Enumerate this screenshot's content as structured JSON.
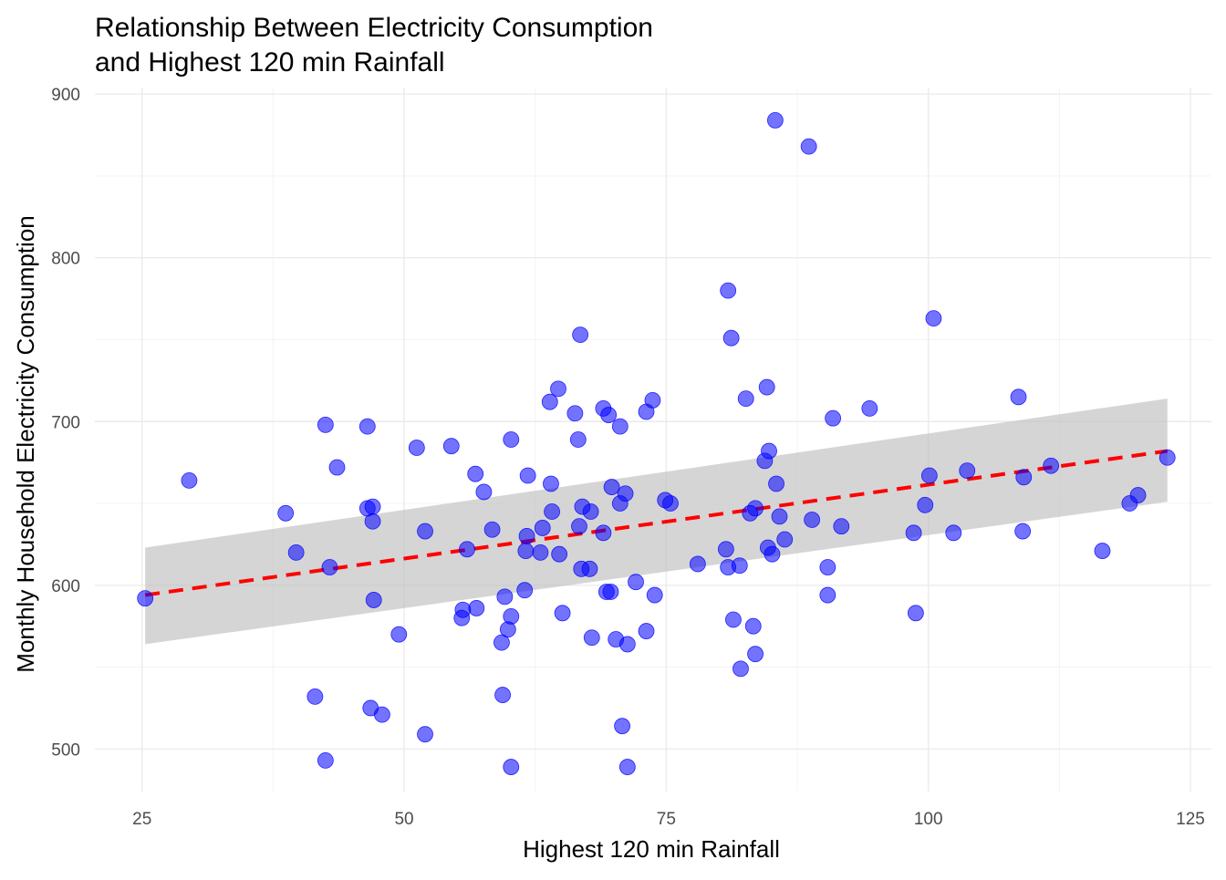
{
  "chart_data": {
    "type": "scatter",
    "title": "Relationship Between Electricity Consumption\nand Highest 120 min Rainfall",
    "title_lines": [
      "Relationship Between Electricity Consumption",
      "and Highest 120 min Rainfall"
    ],
    "xlabel": "Highest 120 min Rainfall",
    "ylabel": "Monthly Household Electricity Consumption",
    "xlim": [
      20.5,
      127
    ],
    "ylim": [
      474,
      904
    ],
    "x_ticks": [
      25,
      50,
      75,
      100,
      125
    ],
    "y_ticks": [
      500,
      600,
      700,
      800,
      900
    ],
    "grid": true,
    "colors": {
      "points": "#0000ff",
      "trend_line": "#ff0000",
      "confidence_band": "#bfbfbf"
    },
    "trend": {
      "method": "linear regression",
      "x": [
        25.3,
        122.8
      ],
      "y": [
        594,
        682
      ],
      "ci_lower": [
        564,
        651
      ],
      "ci_upper": [
        623,
        714
      ]
    },
    "points": [
      [
        25.3,
        592
      ],
      [
        29.5,
        664
      ],
      [
        38.7,
        644
      ],
      [
        39.7,
        620
      ],
      [
        41.5,
        532
      ],
      [
        42.5,
        698
      ],
      [
        42.5,
        493
      ],
      [
        42.9,
        611
      ],
      [
        43.6,
        672
      ],
      [
        46.5,
        697
      ],
      [
        46.5,
        647
      ],
      [
        46.8,
        525
      ],
      [
        47.0,
        648
      ],
      [
        47.0,
        639
      ],
      [
        47.1,
        591
      ],
      [
        47.9,
        521
      ],
      [
        49.5,
        570
      ],
      [
        51.2,
        684
      ],
      [
        52.0,
        633
      ],
      [
        52.0,
        509
      ],
      [
        54.5,
        685
      ],
      [
        55.5,
        580
      ],
      [
        55.6,
        585
      ],
      [
        56.0,
        622
      ],
      [
        56.8,
        668
      ],
      [
        56.9,
        586
      ],
      [
        57.6,
        657
      ],
      [
        58.4,
        634
      ],
      [
        59.3,
        565
      ],
      [
        59.4,
        533
      ],
      [
        59.6,
        593
      ],
      [
        59.9,
        573
      ],
      [
        60.2,
        689
      ],
      [
        60.2,
        581
      ],
      [
        60.2,
        489
      ],
      [
        61.5,
        597
      ],
      [
        61.6,
        621
      ],
      [
        61.7,
        630
      ],
      [
        61.8,
        667
      ],
      [
        63.0,
        620
      ],
      [
        63.2,
        635
      ],
      [
        63.9,
        712
      ],
      [
        64.0,
        662
      ],
      [
        64.1,
        645
      ],
      [
        64.7,
        720
      ],
      [
        64.8,
        619
      ],
      [
        65.1,
        583
      ],
      [
        66.3,
        705
      ],
      [
        66.6,
        689
      ],
      [
        66.7,
        636
      ],
      [
        66.8,
        753
      ],
      [
        66.9,
        610
      ],
      [
        67.0,
        648
      ],
      [
        67.7,
        610
      ],
      [
        67.9,
        568
      ],
      [
        67.8,
        645
      ],
      [
        69.0,
        708
      ],
      [
        69.0,
        632
      ],
      [
        69.3,
        596
      ],
      [
        69.5,
        704
      ],
      [
        69.7,
        596
      ],
      [
        69.8,
        660
      ],
      [
        70.2,
        567
      ],
      [
        70.6,
        697
      ],
      [
        70.6,
        650
      ],
      [
        70.8,
        514
      ],
      [
        71.1,
        656
      ],
      [
        71.3,
        564
      ],
      [
        71.3,
        489
      ],
      [
        72.1,
        602
      ],
      [
        73.1,
        572
      ],
      [
        73.1,
        706
      ],
      [
        73.7,
        713
      ],
      [
        73.9,
        594
      ],
      [
        74.9,
        652
      ],
      [
        75.4,
        650
      ],
      [
        78.0,
        613
      ],
      [
        80.9,
        780
      ],
      [
        80.7,
        622
      ],
      [
        80.9,
        611
      ],
      [
        81.2,
        751
      ],
      [
        81.4,
        579
      ],
      [
        82.0,
        612
      ],
      [
        82.1,
        549
      ],
      [
        82.6,
        714
      ],
      [
        83.0,
        644
      ],
      [
        83.3,
        575
      ],
      [
        83.5,
        647
      ],
      [
        83.5,
        558
      ],
      [
        84.4,
        676
      ],
      [
        84.6,
        721
      ],
      [
        84.7,
        623
      ],
      [
        84.8,
        682
      ],
      [
        85.1,
        619
      ],
      [
        85.4,
        884
      ],
      [
        85.5,
        662
      ],
      [
        85.8,
        642
      ],
      [
        86.3,
        628
      ],
      [
        88.6,
        868
      ],
      [
        88.9,
        640
      ],
      [
        90.4,
        611
      ],
      [
        90.4,
        594
      ],
      [
        90.9,
        702
      ],
      [
        91.7,
        636
      ],
      [
        94.4,
        708
      ],
      [
        98.6,
        632
      ],
      [
        98.8,
        583
      ],
      [
        99.7,
        649
      ],
      [
        100.1,
        667
      ],
      [
        100.5,
        763
      ],
      [
        102.4,
        632
      ],
      [
        103.7,
        670
      ],
      [
        108.6,
        715
      ],
      [
        109.0,
        633
      ],
      [
        109.1,
        666
      ],
      [
        111.7,
        673
      ],
      [
        116.6,
        621
      ],
      [
        119.2,
        650
      ],
      [
        120.0,
        655
      ],
      [
        122.8,
        678
      ]
    ]
  }
}
